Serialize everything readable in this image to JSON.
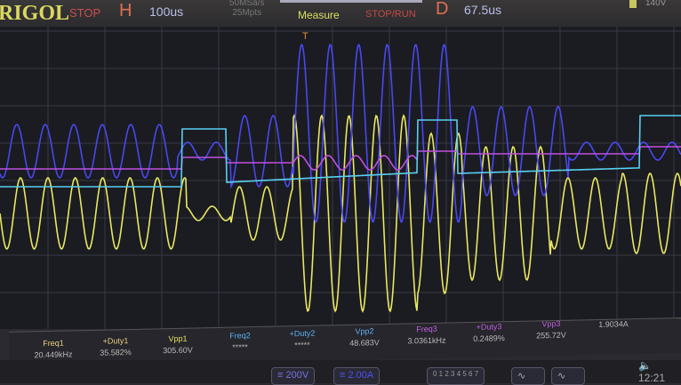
{
  "header": {
    "brand": "RIGOL",
    "run_state": "STOP",
    "timebase_label": "H",
    "timebase": "100us",
    "sample_rate": "50MSa/s",
    "memory": "25Mpts",
    "measure_label": "Measure",
    "stop_run_label": "STOP/RUN",
    "delay_label": "D",
    "delay": "67.5us",
    "voltage": "140V"
  },
  "trigger": {
    "marker": "T"
  },
  "channels": {
    "ch1": "#e8e860",
    "ch2": "#58d0f0",
    "ch3": "#c050e0",
    "ch4": "#4848f0"
  },
  "measurements": [
    {
      "label": "Freq1",
      "value": "20.449kHz",
      "color": "#e8d080"
    },
    {
      "label": "+Duty1",
      "value": "35.582%",
      "color": "#e8d080"
    },
    {
      "label": "Vpp1",
      "value": "305.60V",
      "color": "#e8e060"
    },
    {
      "label": "Freq2",
      "value": "*****",
      "color": "#60b0f0"
    },
    {
      "label": "+Duty2",
      "value": "*****",
      "color": "#60b0f0"
    },
    {
      "label": "Vpp2",
      "value": "48.683V",
      "color": "#60b0f0"
    },
    {
      "label": "Freq3",
      "value": "3.0361kHz",
      "color": "#c060e0"
    },
    {
      "label": "+Duty3",
      "value": "0.2489%",
      "color": "#c060e0"
    },
    {
      "label": "Vpp3",
      "value": "255.72V",
      "color": "#c060e0"
    },
    {
      "label": "",
      "value": "1.9034A",
      "color": "#6060e0"
    }
  ],
  "bottom": {
    "ch3_scale": "200V",
    "ch4_scale": "2.00A",
    "digits": "0 1 2 3 4 5 6 7",
    "time": "12:21"
  }
}
